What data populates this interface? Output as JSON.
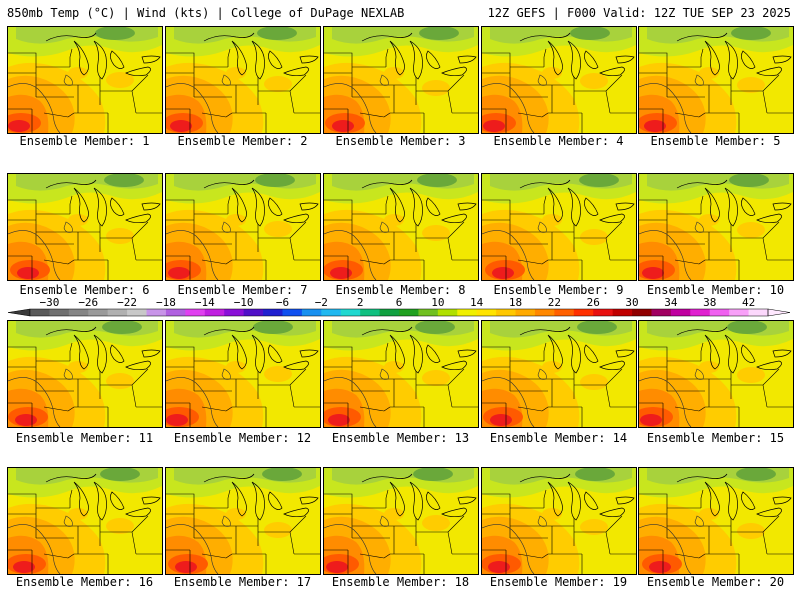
{
  "header": {
    "left": "850mb Temp (°C) | Wind (kts) | College of DuPage NEXLAB",
    "right": "12Z GEFS | F000 Valid: 12Z TUE SEP 23 2025"
  },
  "members": [
    {
      "label": "Ensemble Member: 1"
    },
    {
      "label": "Ensemble Member: 2"
    },
    {
      "label": "Ensemble Member: 3"
    },
    {
      "label": "Ensemble Member: 4"
    },
    {
      "label": "Ensemble Member: 5"
    },
    {
      "label": "Ensemble Member: 6"
    },
    {
      "label": "Ensemble Member: 7"
    },
    {
      "label": "Ensemble Member: 8"
    },
    {
      "label": "Ensemble Member: 9"
    },
    {
      "label": "Ensemble Member: 10"
    },
    {
      "label": "Ensemble Member: 11"
    },
    {
      "label": "Ensemble Member: 12"
    },
    {
      "label": "Ensemble Member: 13"
    },
    {
      "label": "Ensemble Member: 14"
    },
    {
      "label": "Ensemble Member: 15"
    },
    {
      "label": "Ensemble Member: 16"
    },
    {
      "label": "Ensemble Member: 17"
    },
    {
      "label": "Ensemble Member: 18"
    },
    {
      "label": "Ensemble Member: 19"
    },
    {
      "label": "Ensemble Member: 20"
    }
  ],
  "colorbar": {
    "tick_labels": [
      "−30",
      "−26",
      "−22",
      "−18",
      "−14",
      "−10",
      "−6",
      "−2",
      "2",
      "6",
      "10",
      "14",
      "18",
      "22",
      "26",
      "30",
      "34",
      "38",
      "42"
    ],
    "colors": [
      "#5a5a5a",
      "#707070",
      "#858585",
      "#9a9a9a",
      "#b0b0b0",
      "#c8c8c8",
      "#c894e8",
      "#b060e0",
      "#e040f0",
      "#c020e0",
      "#8a10d8",
      "#5010c8",
      "#2020d0",
      "#1050f0",
      "#1890f0",
      "#20b8f0",
      "#20d8d0",
      "#10c080",
      "#10a040",
      "#20a020",
      "#70c020",
      "#b0e000",
      "#f0f000",
      "#ffe400",
      "#ffc800",
      "#ffaa00",
      "#ff8800",
      "#ff6000",
      "#ff3000",
      "#e81010",
      "#c00000",
      "#900000",
      "#a00060",
      "#c000a0",
      "#e020d0",
      "#f060f0",
      "#f8a0f8",
      "#fcd8fc"
    ],
    "left_cap_color": "#3a3a3a",
    "right_cap_color": "#ffe8ff"
  },
  "map_colors": {
    "green": "#a8d23c",
    "light_green": "#c8e61e",
    "yellow": "#f2e800",
    "gold": "#ffcc00",
    "orange": "#ffae00",
    "dark_orange": "#ff8c00",
    "red_orange": "#ff5a00",
    "red": "#ee1c1c",
    "dark_green": "#6aa83a"
  }
}
